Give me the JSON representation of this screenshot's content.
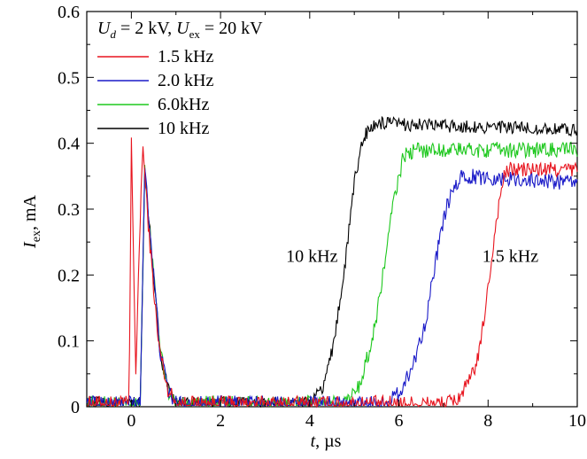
{
  "chart_data": {
    "type": "line",
    "title": "",
    "xlabel_main": "t",
    "xlabel_unit": ", µs",
    "ylabel_main": "I",
    "ylabel_sub": "ex",
    "ylabel_unit": ", mA",
    "xlim": [
      -1,
      10
    ],
    "ylim": [
      0,
      0.6
    ],
    "xticks": [
      0,
      2,
      4,
      6,
      8,
      10
    ],
    "yticks": [
      0,
      0.1,
      0.2,
      0.3,
      0.4,
      0.5,
      0.6
    ],
    "xtick_labels": [
      "0",
      "2",
      "4",
      "6",
      "8",
      "10"
    ],
    "ytick_labels": [
      "0",
      "0.1",
      "0.2",
      "0.3",
      "0.4",
      "0.5",
      "0.6"
    ],
    "grid": false,
    "legend_position": "top-left",
    "legend_title": {
      "ud_var": "U",
      "ud_sub": "d",
      "ud_value": " = 2 kV, ",
      "uex_var": "U",
      "uex_sub": "ex",
      "uex_value": " = 20 kV"
    },
    "annotations": [
      {
        "text": "10 kHz",
        "x": 4.05,
        "y": 0.22
      },
      {
        "text": "1.5 kHz",
        "x": 8.5,
        "y": 0.22
      }
    ],
    "series": [
      {
        "name": "1.5 kHz",
        "color": "#e8141e",
        "points": [
          [
            -1,
            0.005
          ],
          [
            -0.05,
            0.005
          ],
          [
            0,
            0.4
          ],
          [
            0.1,
            0.05
          ],
          [
            0.25,
            0.4
          ],
          [
            0.4,
            0.26
          ],
          [
            0.6,
            0.1
          ],
          [
            0.8,
            0.03
          ],
          [
            1.0,
            0.005
          ],
          [
            7.0,
            0.005
          ],
          [
            7.3,
            0.01
          ],
          [
            7.6,
            0.04
          ],
          [
            7.8,
            0.08
          ],
          [
            8.0,
            0.18
          ],
          [
            8.2,
            0.29
          ],
          [
            8.35,
            0.35
          ],
          [
            8.5,
            0.36
          ],
          [
            10,
            0.36
          ]
        ],
        "noise": 0.012
      },
      {
        "name": "2.0 kHz",
        "color": "#1a1ac8",
        "points": [
          [
            -1,
            0.005
          ],
          [
            0.2,
            0.005
          ],
          [
            0.3,
            0.37
          ],
          [
            0.45,
            0.24
          ],
          [
            0.65,
            0.08
          ],
          [
            0.85,
            0.02
          ],
          [
            1.0,
            0.005
          ],
          [
            5.7,
            0.005
          ],
          [
            6.0,
            0.02
          ],
          [
            6.3,
            0.06
          ],
          [
            6.6,
            0.13
          ],
          [
            6.9,
            0.25
          ],
          [
            7.1,
            0.31
          ],
          [
            7.4,
            0.35
          ],
          [
            10,
            0.34
          ]
        ],
        "noise": 0.012
      },
      {
        "name": "6.0kHz",
        "color": "#1ec81e",
        "points": [
          [
            -1,
            0.005
          ],
          [
            0.2,
            0.005
          ],
          [
            0.3,
            0.36
          ],
          [
            0.45,
            0.24
          ],
          [
            0.65,
            0.08
          ],
          [
            0.85,
            0.02
          ],
          [
            1.0,
            0.005
          ],
          [
            4.8,
            0.005
          ],
          [
            5.1,
            0.03
          ],
          [
            5.4,
            0.1
          ],
          [
            5.6,
            0.18
          ],
          [
            5.85,
            0.3
          ],
          [
            6.1,
            0.38
          ],
          [
            6.4,
            0.39
          ],
          [
            10,
            0.39
          ]
        ],
        "noise": 0.012
      },
      {
        "name": "10 kHz",
        "color": "#000000",
        "points": [
          [
            -1,
            0.005
          ],
          [
            0.2,
            0.005
          ],
          [
            0.3,
            0.36
          ],
          [
            0.45,
            0.24
          ],
          [
            0.65,
            0.08
          ],
          [
            0.85,
            0.02
          ],
          [
            1.0,
            0.005
          ],
          [
            4.0,
            0.005
          ],
          [
            4.3,
            0.03
          ],
          [
            4.55,
            0.1
          ],
          [
            4.8,
            0.22
          ],
          [
            5.0,
            0.34
          ],
          [
            5.2,
            0.41
          ],
          [
            5.5,
            0.43
          ],
          [
            10,
            0.42
          ]
        ],
        "noise": 0.01
      }
    ]
  }
}
